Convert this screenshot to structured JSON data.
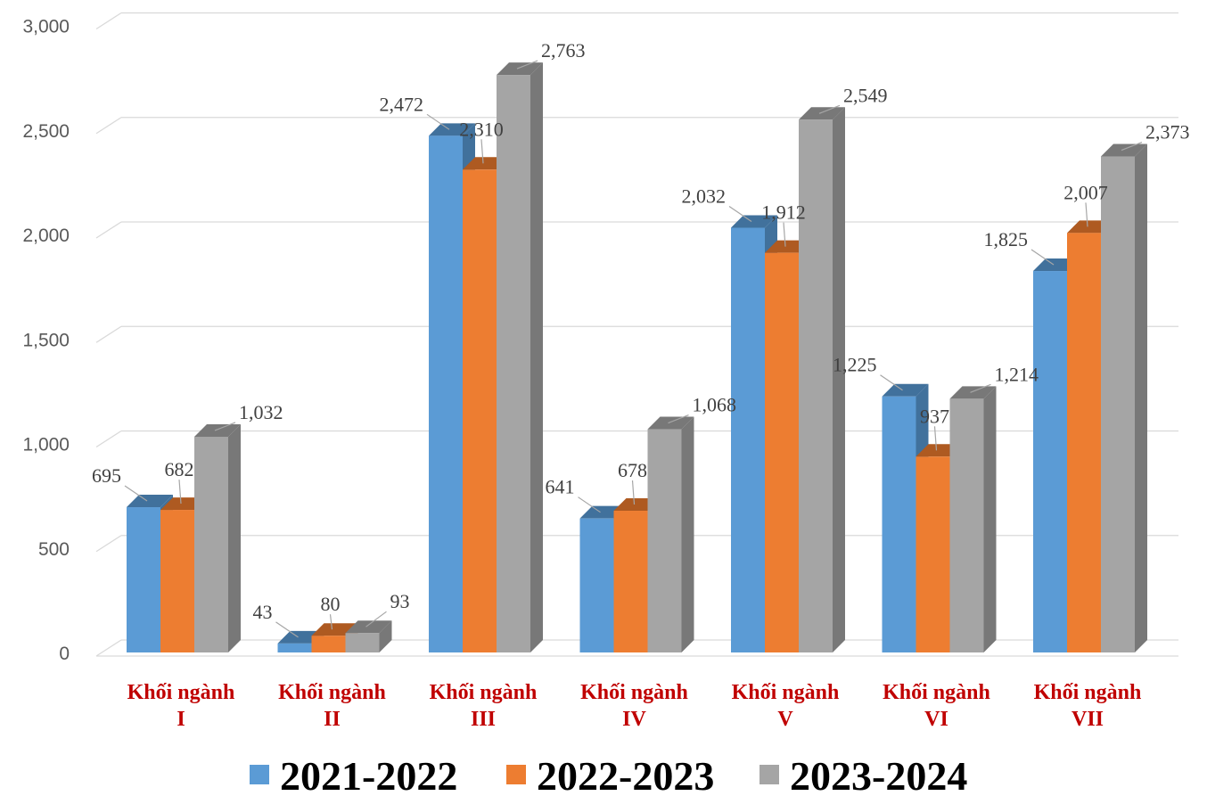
{
  "chart_data": {
    "type": "bar",
    "title": "",
    "xlabel": "",
    "ylabel": "",
    "ylim": [
      0,
      3000
    ],
    "yticks": [
      0,
      500,
      1000,
      1500,
      2000,
      2500,
      3000
    ],
    "ytick_labels": [
      "0",
      "500",
      "1,000",
      "1,500",
      "2,000",
      "2,500",
      "3,000"
    ],
    "grid": true,
    "legend_position": "bottom",
    "categories": [
      [
        "Khối ngành",
        "I"
      ],
      [
        "Khối ngành",
        "II"
      ],
      [
        "Khối ngành",
        "III"
      ],
      [
        "Khối ngành",
        "IV"
      ],
      [
        "Khối ngành",
        "V"
      ],
      [
        "Khối ngành",
        "VI"
      ],
      [
        "Khối ngành",
        "VII"
      ]
    ],
    "series": [
      {
        "name": "2021-2022",
        "color": "#5b9bd5",
        "side_color": "#41719c",
        "values": [
          695,
          43,
          2472,
          641,
          2032,
          1225,
          1825
        ],
        "labels": [
          "695",
          "43",
          "2,472",
          "641",
          "2,032",
          "1,225",
          "1,825"
        ]
      },
      {
        "name": "2022-2023",
        "color": "#ed7d31",
        "side_color": "#ae5a21",
        "values": [
          682,
          80,
          2310,
          678,
          1912,
          937,
          2007
        ],
        "labels": [
          "682",
          "80",
          "2,310",
          "678",
          "1,912",
          "937",
          "2,007"
        ]
      },
      {
        "name": "2023-2024",
        "color": "#a5a5a5",
        "side_color": "#787878",
        "values": [
          1032,
          93,
          2763,
          1068,
          2549,
          1214,
          2373
        ],
        "labels": [
          "1,032",
          "93",
          "2,763",
          "1,068",
          "2,549",
          "1,214",
          "2,373"
        ]
      }
    ]
  }
}
